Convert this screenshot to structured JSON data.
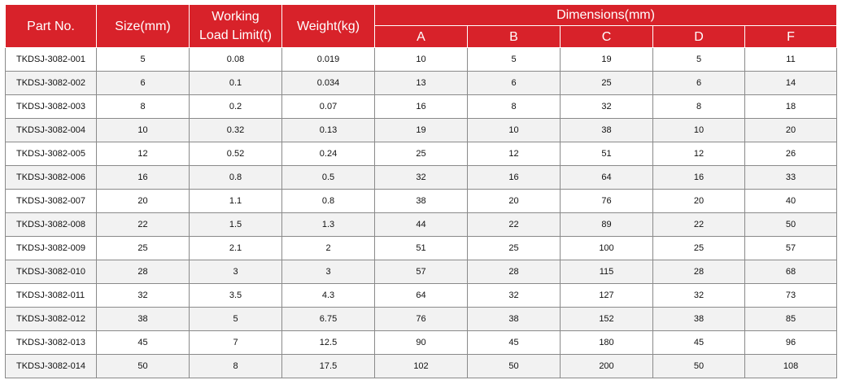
{
  "table": {
    "headers": {
      "part_no": "Part No.",
      "size": "Size(mm)",
      "wll_line1": "Working",
      "wll_line2": "Load Limit(t)",
      "weight": "Weight(kg)",
      "dimensions": "Dimensions(mm)",
      "dim_cols": [
        "A",
        "B",
        "C",
        "D",
        "F"
      ]
    },
    "rows": [
      [
        "TKDSJ-3082-001",
        "5",
        "0.08",
        "0.019",
        "10",
        "5",
        "19",
        "5",
        "11"
      ],
      [
        "TKDSJ-3082-002",
        "6",
        "0.1",
        "0.034",
        "13",
        "6",
        "25",
        "6",
        "14"
      ],
      [
        "TKDSJ-3082-003",
        "8",
        "0.2",
        "0.07",
        "16",
        "8",
        "32",
        "8",
        "18"
      ],
      [
        "TKDSJ-3082-004",
        "10",
        "0.32",
        "0.13",
        "19",
        "10",
        "38",
        "10",
        "20"
      ],
      [
        "TKDSJ-3082-005",
        "12",
        "0.52",
        "0.24",
        "25",
        "12",
        "51",
        "12",
        "26"
      ],
      [
        "TKDSJ-3082-006",
        "16",
        "0.8",
        "0.5",
        "32",
        "16",
        "64",
        "16",
        "33"
      ],
      [
        "TKDSJ-3082-007",
        "20",
        "1.1",
        "0.8",
        "38",
        "20",
        "76",
        "20",
        "40"
      ],
      [
        "TKDSJ-3082-008",
        "22",
        "1.5",
        "1.3",
        "44",
        "22",
        "89",
        "22",
        "50"
      ],
      [
        "TKDSJ-3082-009",
        "25",
        "2.1",
        "2",
        "51",
        "25",
        "100",
        "25",
        "57"
      ],
      [
        "TKDSJ-3082-010",
        "28",
        "3",
        "3",
        "57",
        "28",
        "115",
        "28",
        "68"
      ],
      [
        "TKDSJ-3082-011",
        "32",
        "3.5",
        "4.3",
        "64",
        "32",
        "127",
        "32",
        "73"
      ],
      [
        "TKDSJ-3082-012",
        "38",
        "5",
        "6.75",
        "76",
        "38",
        "152",
        "38",
        "85"
      ],
      [
        "TKDSJ-3082-013",
        "45",
        "7",
        "12.5",
        "90",
        "45",
        "180",
        "45",
        "96"
      ],
      [
        "TKDSJ-3082-014",
        "50",
        "8",
        "17.5",
        "102",
        "50",
        "200",
        "50",
        "108"
      ]
    ]
  },
  "colors": {
    "header_bg": "#d8222a",
    "header_text": "#ffffff",
    "stripe_bg": "#f2f2f2",
    "border": "#8a8a8a"
  }
}
